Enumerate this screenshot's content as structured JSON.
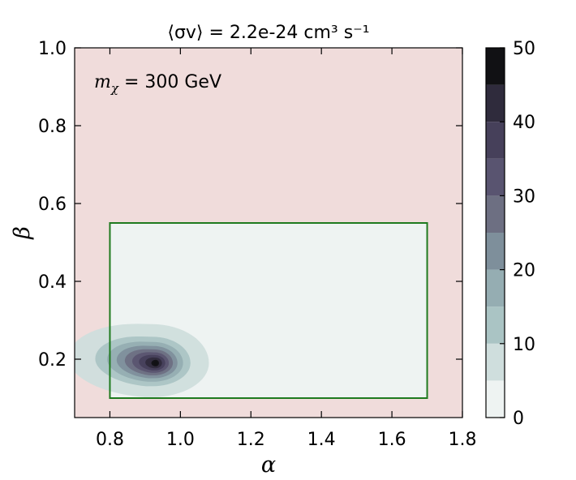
{
  "chart_data": {
    "type": "contour",
    "title": "⟨σv⟩ = 2.2e-24 cm³ s⁻¹",
    "annotation": "m_χ = 300 GeV",
    "annotation_parts": {
      "symbol": "m",
      "subscript": "χ",
      "rest": " = 300 GeV"
    },
    "xlabel": "α",
    "ylabel": "β",
    "xlim": [
      0.7,
      1.8
    ],
    "ylim": [
      0.05,
      1.0
    ],
    "x_ticks": [
      0.8,
      1.0,
      1.2,
      1.4,
      1.6,
      1.8
    ],
    "x_tick_labels": [
      "0.8",
      "1.0",
      "1.2",
      "1.4",
      "1.6",
      "1.8"
    ],
    "y_ticks": [
      0.2,
      0.4,
      0.6,
      0.8,
      1.0
    ],
    "y_tick_labels": [
      "0.2",
      "0.4",
      "0.6",
      "0.8",
      "1.0"
    ],
    "background_region_color": "#f0dcdb",
    "allowed_region": {
      "x": [
        0.8,
        1.7
      ],
      "y": [
        0.1,
        0.55
      ],
      "fill": "#eef3f2",
      "edge_color": "#1f7a1f"
    },
    "density_peak": {
      "alpha": 0.93,
      "beta": 0.19
    },
    "contour_levels": [
      5,
      10,
      15,
      20,
      25,
      30,
      35,
      40,
      45,
      50
    ],
    "colorbar": {
      "range": [
        0,
        50
      ],
      "ticks": [
        0,
        10,
        20,
        30,
        40,
        50
      ],
      "tick_labels": [
        "0",
        "10",
        "20",
        "30",
        "40",
        "50"
      ],
      "band_colors": [
        "#eef3f2",
        "#cfdedd",
        "#aac4c4",
        "#95adb2",
        "#7e8f9b",
        "#6d6f82",
        "#595470",
        "#46405a",
        "#2f2b3c",
        "#111114"
      ]
    }
  }
}
